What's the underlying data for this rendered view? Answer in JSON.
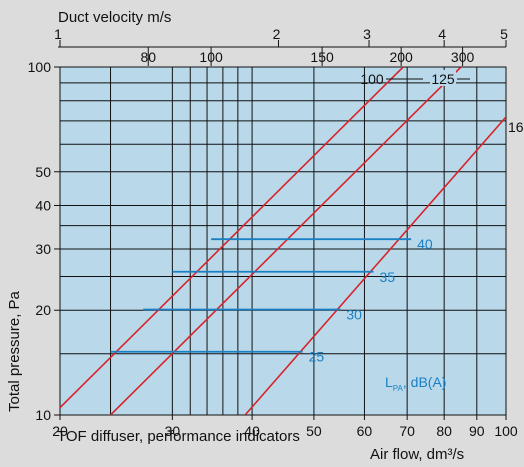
{
  "chart_data": {
    "type": "line",
    "title": "",
    "top_axis_label": "Duct velocity m/s",
    "xlabel": "Air flow, dm³/s",
    "ylabel": "Total pressure, Pa",
    "caption": "TOF diffuser, performance indicators",
    "x_scale": "log",
    "y_scale": "log",
    "xlim": [
      20,
      100
    ],
    "ylim": [
      10,
      100
    ],
    "grid": true,
    "x_ticks": [
      {
        "v": 20,
        "l": "20"
      },
      {
        "v": 30,
        "l": "30"
      },
      {
        "v": 40,
        "l": "40"
      },
      {
        "v": 50,
        "l": "50"
      },
      {
        "v": 60,
        "l": "60"
      },
      {
        "v": 70,
        "l": "70"
      },
      {
        "v": 80,
        "l": "80"
      },
      {
        "v": 90,
        "l": "90"
      },
      {
        "v": 100,
        "l": "100"
      }
    ],
    "x_gridlines": [
      24,
      30,
      32,
      34,
      36,
      38,
      40,
      50,
      60,
      70,
      80,
      90
    ],
    "y_ticks": [
      {
        "v": 10,
        "l": "10"
      },
      {
        "v": 20,
        "l": "20"
      },
      {
        "v": 30,
        "l": "30"
      },
      {
        "v": 40,
        "l": "40"
      },
      {
        "v": 50,
        "l": "50"
      },
      {
        "v": 100,
        "l": "100"
      }
    ],
    "y_gridlines": [
      15,
      20,
      25,
      30,
      35,
      40,
      50,
      60,
      70,
      80,
      90
    ],
    "top_minor_ticks": [
      {
        "v": 27.5,
        "l": "80"
      },
      {
        "v": 34.5,
        "l": "100"
      },
      {
        "v": 51.5,
        "l": "150"
      },
      {
        "v": 68.5,
        "l": "200"
      },
      {
        "v": 85.5,
        "l": "300"
      }
    ],
    "top_major_ticks": [
      {
        "v": 20,
        "l": "1"
      },
      {
        "v": 44,
        "l": "2"
      },
      {
        "v": 61,
        "l": "3"
      },
      {
        "v": 80,
        "l": "4"
      },
      {
        "v": 100,
        "l": "5"
      }
    ],
    "series": [
      {
        "name": "100",
        "color": "#d8232a",
        "points": [
          [
            20,
            10.5
          ],
          [
            69,
            100
          ]
        ]
      },
      {
        "name": "125",
        "color": "#d8232a",
        "points": [
          [
            24,
            10
          ],
          [
            85,
            100
          ]
        ]
      },
      {
        "name": "16",
        "color": "#d8232a",
        "points": [
          [
            39,
            10
          ],
          [
            104,
            78
          ]
        ]
      }
    ],
    "noise_lines": [
      {
        "label": "40",
        "y": 32,
        "x1": 34.5,
        "x2": 71
      },
      {
        "label": "35",
        "y": 25.8,
        "x1": 30,
        "x2": 62
      },
      {
        "label": "30",
        "y": 20.1,
        "x1": 27,
        "x2": 55
      },
      {
        "label": "25",
        "y": 15.2,
        "x1": 24,
        "x2": 48
      }
    ],
    "noise_legend": "L",
    "noise_legend_sub": "PA",
    "noise_legend_suffix": ", dB(A)",
    "colors": {
      "background": "#b9d9ea",
      "curve": "#d8232a",
      "noise": "#1b7fc4",
      "grid": "#111111"
    }
  }
}
